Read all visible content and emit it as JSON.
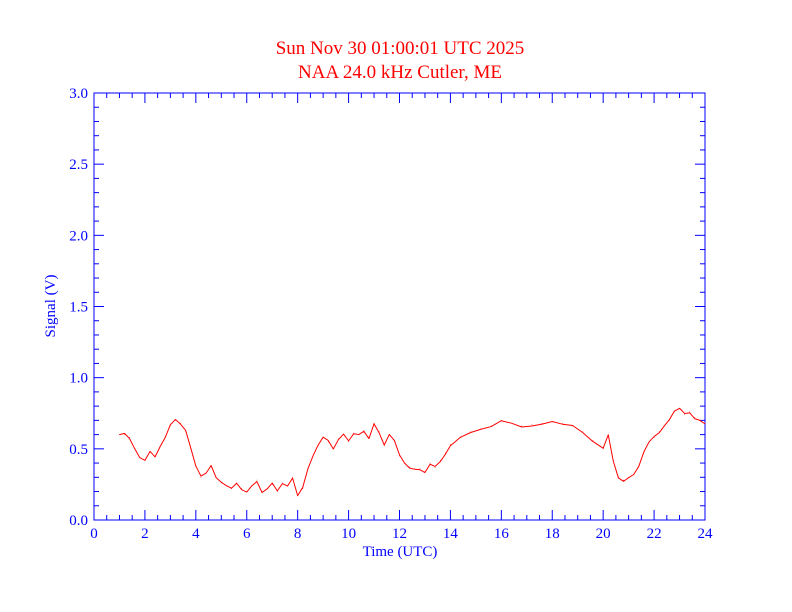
{
  "colors": {
    "axes": "#0000ff",
    "title": "#ff0000",
    "series": "#ff0000",
    "background": "#ffffff"
  },
  "chart_data": {
    "type": "line",
    "title": "Sun Nov 30 01:00:01 UTC 2025",
    "subtitle": "NAA 24.0 kHz Cutler, ME",
    "xlabel": "Time (UTC)",
    "ylabel": "Signal (V)",
    "xlim": [
      0,
      24
    ],
    "ylim": [
      0,
      3.0
    ],
    "xticks": [
      "0",
      "2",
      "4",
      "6",
      "8",
      "10",
      "12",
      "14",
      "16",
      "18",
      "20",
      "22",
      "24"
    ],
    "yticks": [
      "0.0",
      "0.5",
      "1.0",
      "1.5",
      "2.0",
      "2.5",
      "3.0"
    ],
    "grid": false,
    "series": [
      {
        "x": [
          1.0,
          1.2,
          1.4,
          1.6,
          1.8,
          2.0,
          2.2,
          2.4,
          2.6,
          2.8,
          3.0,
          3.2,
          3.4,
          3.6,
          3.8,
          4.0,
          4.2,
          4.4,
          4.6,
          4.8,
          5.0,
          5.2,
          5.4,
          5.6,
          5.8,
          6.0,
          6.2,
          6.4,
          6.6,
          6.8,
          7.0,
          7.2,
          7.4,
          7.6,
          7.8,
          8.0,
          8.2,
          8.4,
          8.6,
          8.8,
          9.0,
          9.2,
          9.4,
          9.6,
          9.8,
          10.0,
          10.2,
          10.4,
          10.6,
          10.8,
          11.0,
          11.2,
          11.4,
          11.6,
          11.8,
          12.0,
          12.2,
          12.4,
          12.6,
          12.8,
          13.0,
          13.2,
          13.4,
          13.6,
          13.8,
          14.0,
          14.4,
          14.8,
          15.2,
          15.6,
          16.0,
          16.4,
          16.8,
          17.2,
          17.6,
          18.0,
          18.4,
          18.8,
          19.2,
          19.6,
          20.0,
          20.2,
          20.4,
          20.6,
          20.8,
          21.0,
          21.2,
          21.4,
          21.6,
          21.8,
          22.0,
          22.2,
          22.4,
          22.6,
          22.8,
          23.0,
          23.2,
          23.4,
          23.6,
          23.8,
          24.0
        ],
        "y": [
          0.6,
          0.6,
          0.58,
          0.5,
          0.44,
          0.42,
          0.48,
          0.45,
          0.52,
          0.58,
          0.66,
          0.7,
          0.68,
          0.62,
          0.5,
          0.38,
          0.3,
          0.33,
          0.38,
          0.3,
          0.26,
          0.24,
          0.22,
          0.26,
          0.22,
          0.2,
          0.24,
          0.28,
          0.2,
          0.22,
          0.25,
          0.2,
          0.26,
          0.24,
          0.3,
          0.17,
          0.22,
          0.35,
          0.45,
          0.52,
          0.58,
          0.55,
          0.5,
          0.57,
          0.6,
          0.55,
          0.61,
          0.6,
          0.63,
          0.58,
          0.68,
          0.62,
          0.52,
          0.6,
          0.56,
          0.45,
          0.4,
          0.37,
          0.36,
          0.36,
          0.34,
          0.4,
          0.37,
          0.42,
          0.47,
          0.53,
          0.58,
          0.62,
          0.64,
          0.66,
          0.7,
          0.68,
          0.66,
          0.67,
          0.68,
          0.69,
          0.68,
          0.66,
          0.62,
          0.56,
          0.5,
          0.6,
          0.42,
          0.3,
          0.28,
          0.3,
          0.32,
          0.38,
          0.48,
          0.54,
          0.58,
          0.62,
          0.66,
          0.7,
          0.76,
          0.78,
          0.74,
          0.76,
          0.72,
          0.7,
          0.68
        ]
      }
    ]
  }
}
